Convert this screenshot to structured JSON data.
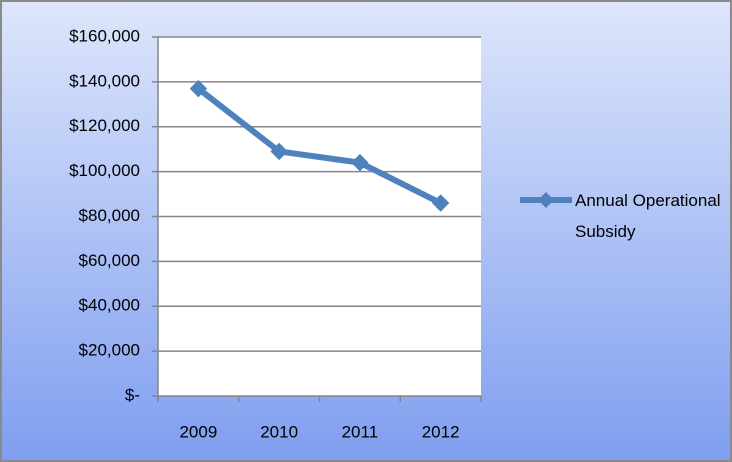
{
  "chart_data": {
    "type": "line",
    "categories": [
      "2009",
      "2010",
      "2011",
      "2012"
    ],
    "series": [
      {
        "name": "Annual Operational Subsidy",
        "color": "#4f81bd",
        "values": [
          137000,
          109000,
          104000,
          86000
        ]
      }
    ],
    "ylim": [
      0,
      160000
    ],
    "yticks": [
      {
        "value": 0,
        "label": "$-"
      },
      {
        "value": 20000,
        "label": "$20,000"
      },
      {
        "value": 40000,
        "label": "$40,000"
      },
      {
        "value": 60000,
        "label": "$60,000"
      },
      {
        "value": 80000,
        "label": "$80,000"
      },
      {
        "value": 100000,
        "label": "$100,000"
      },
      {
        "value": 120000,
        "label": "$120,000"
      },
      {
        "value": 140000,
        "label": "$140,000"
      },
      {
        "value": 160000,
        "label": "$160,000"
      }
    ],
    "grid": true,
    "legend": "right"
  }
}
